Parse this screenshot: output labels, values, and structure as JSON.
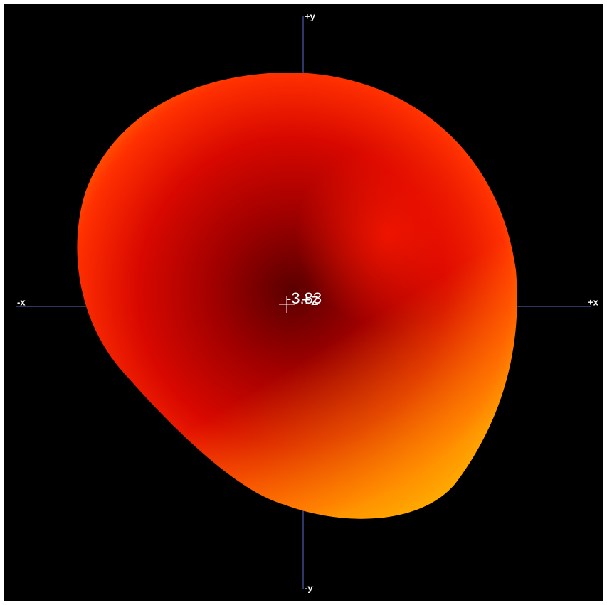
{
  "axes": {
    "plus_y": "+y",
    "minus_y": "-y",
    "minus_x": "-x",
    "plus_x": "+x",
    "plus_z": "+z"
  },
  "center_value": "-3.83"
}
